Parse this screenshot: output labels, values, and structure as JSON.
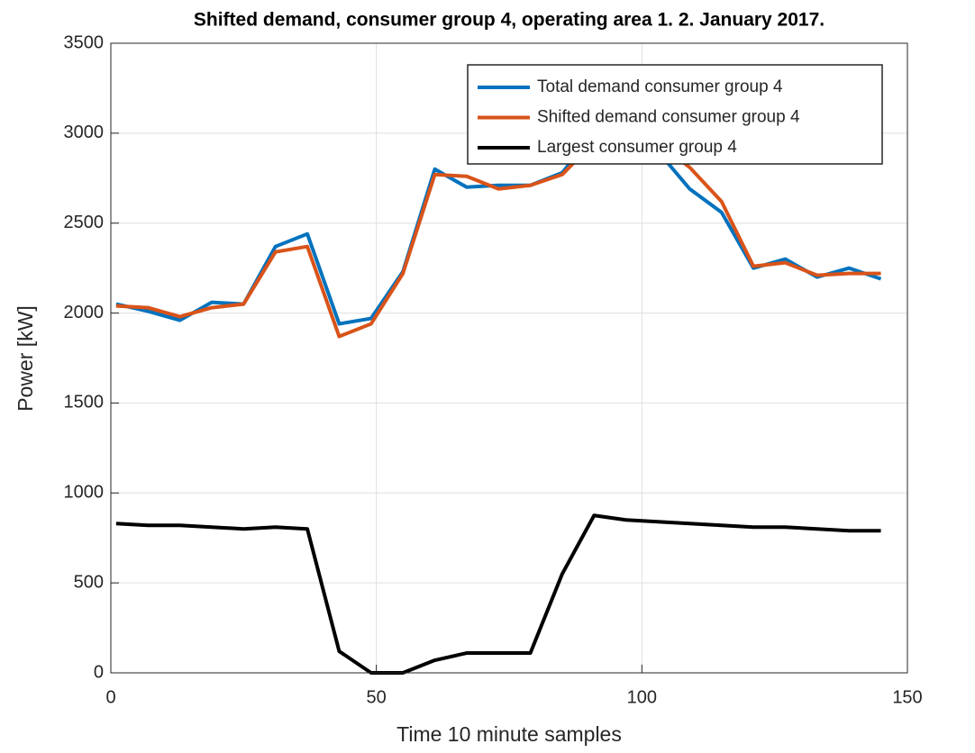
{
  "chart_data": {
    "type": "line",
    "title": "Shifted demand, consumer group 4, operating area 1. 2. January 2017.",
    "x_label": "Time 10 minute samples",
    "y_label": "Power [kW]",
    "x": [
      1,
      7,
      13,
      19,
      25,
      31,
      37,
      43,
      49,
      55,
      61,
      67,
      73,
      79,
      85,
      91,
      97,
      103,
      109,
      115,
      121,
      127,
      133,
      139,
      145
    ],
    "series": [
      {
        "name": "Total demand consumer group 4",
        "color": "#0072bd",
        "values": [
          2050,
          2010,
          1960,
          2060,
          2050,
          2370,
          2440,
          1940,
          1970,
          2230,
          2800,
          2700,
          2710,
          2710,
          2780,
          3000,
          3050,
          2900,
          2690,
          2560,
          2250,
          2300,
          2200,
          2250,
          2190
        ]
      },
      {
        "name": "Shifted demand consumer group 4",
        "color": "#d95319",
        "values": [
          2040,
          2030,
          1980,
          2030,
          2050,
          2340,
          2370,
          1870,
          1940,
          2220,
          2770,
          2760,
          2690,
          2710,
          2770,
          2950,
          3050,
          2950,
          2810,
          2620,
          2260,
          2280,
          2210,
          2220,
          2220
        ]
      },
      {
        "name": "Largest consumer group 4",
        "color": "#000000",
        "values": [
          830,
          820,
          820,
          810,
          800,
          810,
          800,
          120,
          0,
          0,
          70,
          110,
          110,
          110,
          550,
          875,
          850,
          840,
          830,
          820,
          810,
          810,
          800,
          790,
          790
        ]
      }
    ],
    "xlim": [
      0,
      150
    ],
    "xticks": [
      0,
      50,
      100,
      150
    ],
    "ylim": [
      0,
      3500
    ],
    "yticks": [
      0,
      500,
      1000,
      1500,
      2000,
      2500,
      3000,
      3500
    ],
    "grid": true,
    "legend_position": "northeast"
  }
}
